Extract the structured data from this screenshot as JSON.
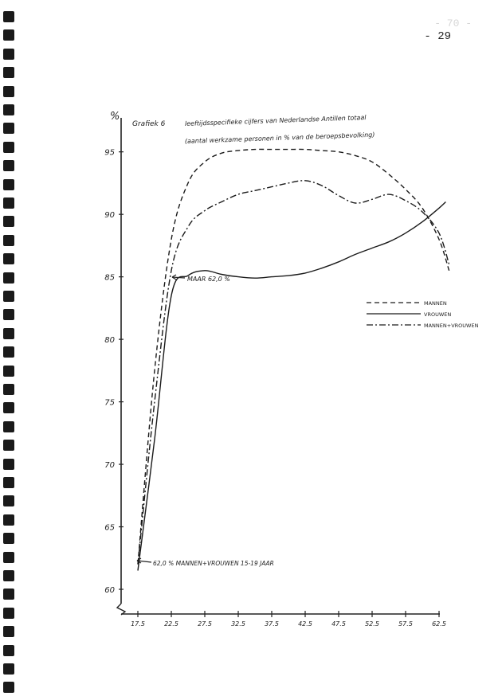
{
  "page": {
    "page_number": "- 29",
    "faded_page_number": "- 70 -"
  },
  "chart_data": {
    "type": "line",
    "title_prefix": "Grafiek 6",
    "title": "leeftijdsspecifieke cijfers van Nederlandse Antillen totaal",
    "subtitle": "(aantal werkzame personen in % van de beroepsbevolking)",
    "ylabel": "%",
    "ylim": [
      60,
      96
    ],
    "xlim": [
      15,
      65
    ],
    "y_ticks": [
      60,
      65,
      70,
      75,
      80,
      85,
      90,
      95
    ],
    "x_ticks": [
      17.5,
      22.5,
      27.5,
      32.5,
      37.5,
      42.5,
      47.5,
      52.5,
      57.5,
      62.5
    ],
    "x_tick_labels": [
      "17.5",
      "22.5",
      "27.5",
      "32.5",
      "37.5",
      "42.5",
      "47.5",
      "52.5",
      "57.5",
      "62.5"
    ],
    "y_tick_labels": [
      "60",
      "65",
      "70",
      "75",
      "80",
      "85",
      "90",
      "95"
    ],
    "grid": false,
    "legend_position": "right",
    "series": [
      {
        "name": "MANNEN",
        "style": "dashed",
        "x": [
          17.5,
          20,
          22.5,
          25,
          27.5,
          30,
          32.5,
          35,
          37.5,
          40,
          42.5,
          45,
          47.5,
          50,
          52.5,
          55,
          57.5,
          60,
          62.5,
          64
        ],
        "y": [
          62.0,
          77.5,
          88.0,
          92.5,
          94.2,
          94.9,
          95.1,
          95.2,
          95.2,
          95.2,
          95.2,
          95.1,
          95.0,
          94.7,
          94.2,
          93.2,
          92.0,
          90.5,
          88.0,
          85.5
        ]
      },
      {
        "name": "VROUWEN",
        "style": "solid",
        "x": [
          17.5,
          20,
          22.5,
          25,
          27.5,
          30,
          32.5,
          35,
          37.5,
          40,
          42.5,
          45,
          47.5,
          50,
          52.5,
          55,
          57.5,
          60,
          62.5,
          63.5
        ],
        "y": [
          61.5,
          72.0,
          83.5,
          85.1,
          85.5,
          85.2,
          85.0,
          84.9,
          85.0,
          85.1,
          85.3,
          85.7,
          86.2,
          86.8,
          87.3,
          87.8,
          88.5,
          89.4,
          90.5,
          91.0
        ]
      },
      {
        "name": "MANNEN+VROUWEN",
        "style": "dash-dot",
        "x": [
          17.5,
          20,
          22.5,
          25,
          27.5,
          30,
          32.5,
          35,
          37.5,
          40,
          42.5,
          45,
          47.5,
          50,
          52.5,
          55,
          57.5,
          60,
          62.5,
          64
        ],
        "y": [
          62.0,
          75.0,
          85.5,
          89.0,
          90.3,
          91.0,
          91.6,
          91.9,
          92.2,
          92.5,
          92.7,
          92.3,
          91.5,
          90.9,
          91.2,
          91.6,
          91.1,
          90.2,
          88.5,
          86.0
        ]
      }
    ],
    "annotations": [
      {
        "text": "MAAR 62,0 %"
      },
      {
        "text": "62,0 % MANNEN+VROUWEN 15-19 JAAR"
      }
    ]
  }
}
